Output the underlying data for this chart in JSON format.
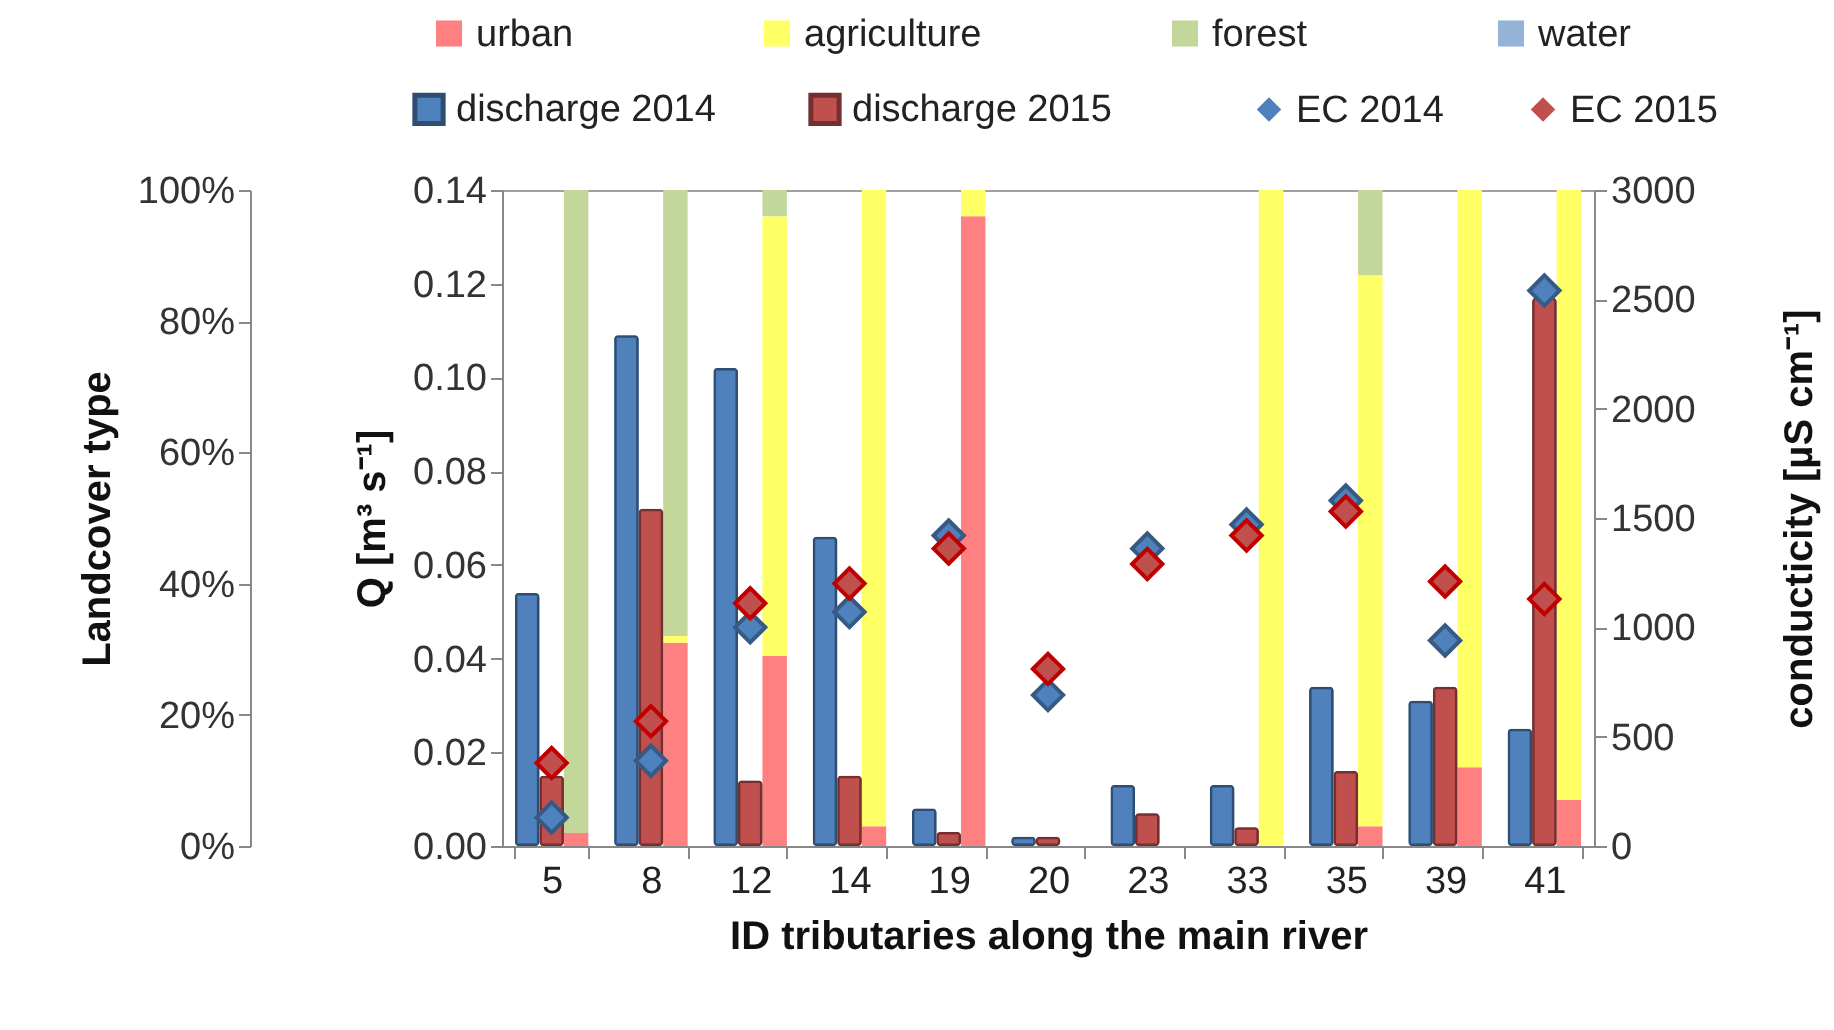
{
  "chart_data": {
    "type": "bar",
    "xlabel": "ID tributaries along the main river",
    "ylabel": "Q [m³ s⁻¹]",
    "y2label": "conducticity [µS cm⁻¹]",
    "y3label": "Landcover type",
    "categories": [
      "5",
      "8",
      "12",
      "14",
      "19",
      "20",
      "23",
      "33",
      "35",
      "39",
      "41"
    ],
    "ylim": [
      0,
      0.14
    ],
    "yticks": [
      {
        "value": 0,
        "label": "0.00"
      },
      {
        "value": 0.02,
        "label": "0.02"
      },
      {
        "value": 0.04,
        "label": "0.04"
      },
      {
        "value": 0.06,
        "label": "0.06"
      },
      {
        "value": 0.08,
        "label": "0.08"
      },
      {
        "value": 0.1,
        "label": "0.10"
      },
      {
        "value": 0.12,
        "label": "0.12"
      },
      {
        "value": 0.14,
        "label": "0.14"
      }
    ],
    "y2lim": [
      0,
      3000
    ],
    "y2ticks": [
      0,
      500,
      1000,
      1500,
      2000,
      2500,
      3000
    ],
    "y3lim": [
      0,
      100
    ],
    "y3ticks": [
      {
        "value": 0,
        "label": "0%"
      },
      {
        "value": 20,
        "label": "20%"
      },
      {
        "value": 40,
        "label": "40%"
      },
      {
        "value": 60,
        "label": "60%"
      },
      {
        "value": 80,
        "label": "80%"
      },
      {
        "value": 100,
        "label": "100%"
      }
    ],
    "legend": "top",
    "marker": "diamond",
    "series": [
      {
        "name": "urban",
        "axis": "y3",
        "color": "#ff8080",
        "base": [
          0,
          0,
          0,
          0,
          0,
          null,
          null,
          null,
          0,
          0,
          0
        ],
        "values": [
          2,
          31,
          29,
          3,
          96,
          null,
          null,
          null,
          3,
          12,
          7
        ]
      },
      {
        "name": "agriculture",
        "axis": "y3",
        "color": "#ffff66",
        "base": [
          null,
          31,
          29,
          3,
          96,
          null,
          null,
          0,
          3,
          12,
          7
        ],
        "values": [
          null,
          1,
          67,
          97,
          4,
          null,
          null,
          100,
          84,
          88,
          93
        ]
      },
      {
        "name": "forest",
        "axis": "y3",
        "color": "#c4d79b",
        "base": [
          2,
          32,
          96,
          null,
          null,
          null,
          null,
          null,
          87,
          null,
          null
        ],
        "values": [
          98,
          68,
          4,
          null,
          null,
          null,
          null,
          null,
          13,
          null,
          null
        ]
      },
      {
        "name": "water",
        "axis": "y3",
        "color": "#95b3d7",
        "base": [
          null,
          null,
          null,
          null,
          null,
          null,
          null,
          null,
          null,
          null,
          null
        ],
        "values": [
          null,
          null,
          null,
          null,
          null,
          null,
          null,
          null,
          null,
          null,
          null
        ]
      },
      {
        "name": "discharge 2014",
        "color": "#4f81bd",
        "values": [
          0.054,
          0.109,
          0.102,
          0.066,
          0.008,
          0.002,
          0.013,
          0.013,
          0.034,
          0.031,
          0.025
        ]
      },
      {
        "name": "discharge 2015",
        "color": "#c0504d",
        "values": [
          0.015,
          0.072,
          0.014,
          0.015,
          0.003,
          0.002,
          0.007,
          0.004,
          0.016,
          0.034,
          0.117
        ]
      },
      {
        "name": "EC 2014",
        "type": "scatter",
        "axis": "y2",
        "color": "#4f81bd",
        "values": [
          130,
          390,
          1000,
          1070,
          1420,
          690,
          1360,
          1470,
          1580,
          940,
          2540
        ]
      },
      {
        "name": "EC 2015",
        "type": "scatter",
        "axis": "y2",
        "color": "#c0504d",
        "values": [
          380,
          570,
          1110,
          1200,
          1360,
          810,
          1290,
          1420,
          1530,
          1210,
          1130
        ]
      }
    ]
  }
}
